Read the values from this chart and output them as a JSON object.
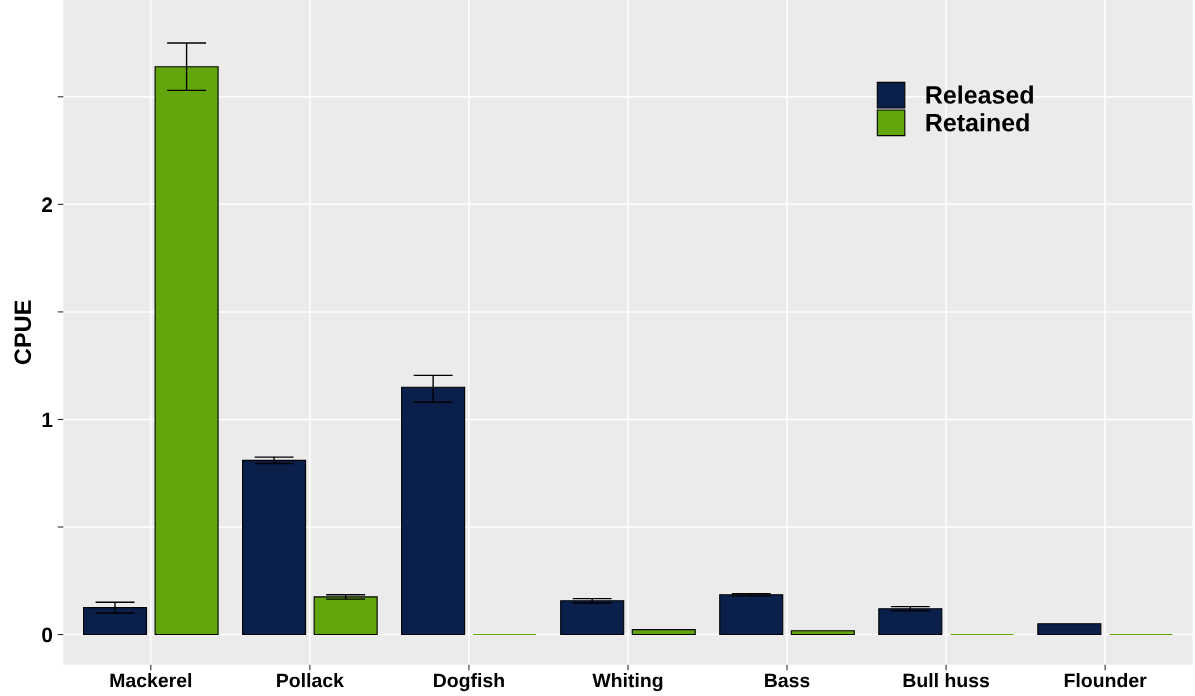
{
  "chart_data": {
    "type": "bar",
    "ylabel": "CPUE",
    "categories": [
      "Mackerel",
      "Pollack",
      "Dogfish",
      "Whiting",
      "Bass",
      "Bull huss",
      "Flounder"
    ],
    "series": [
      {
        "name": "Released",
        "color": "#0a1f4a",
        "values": [
          0.125,
          0.81,
          1.15,
          0.157,
          0.185,
          0.12,
          0.05
        ],
        "errors": [
          0.025,
          0.015,
          [
            1.08,
            1.205
          ],
          0.01,
          0.005,
          0.01,
          null
        ]
      },
      {
        "name": "Retained",
        "color": "#62a60e",
        "values": [
          2.64,
          0.175,
          0,
          0.023,
          0.018,
          0,
          0
        ],
        "errors": [
          [
            2.53,
            2.75
          ],
          0.01,
          null,
          null,
          null,
          null,
          null
        ]
      }
    ],
    "ylim": [
      -0.14,
      2.95
    ],
    "yticks": [
      0,
      {
        "value": 0.5,
        "label": null
      },
      1,
      {
        "value": 1.5,
        "label": null
      },
      2,
      {
        "value": 2.5,
        "label": null
      }
    ],
    "grid": true,
    "legend": "top right"
  }
}
